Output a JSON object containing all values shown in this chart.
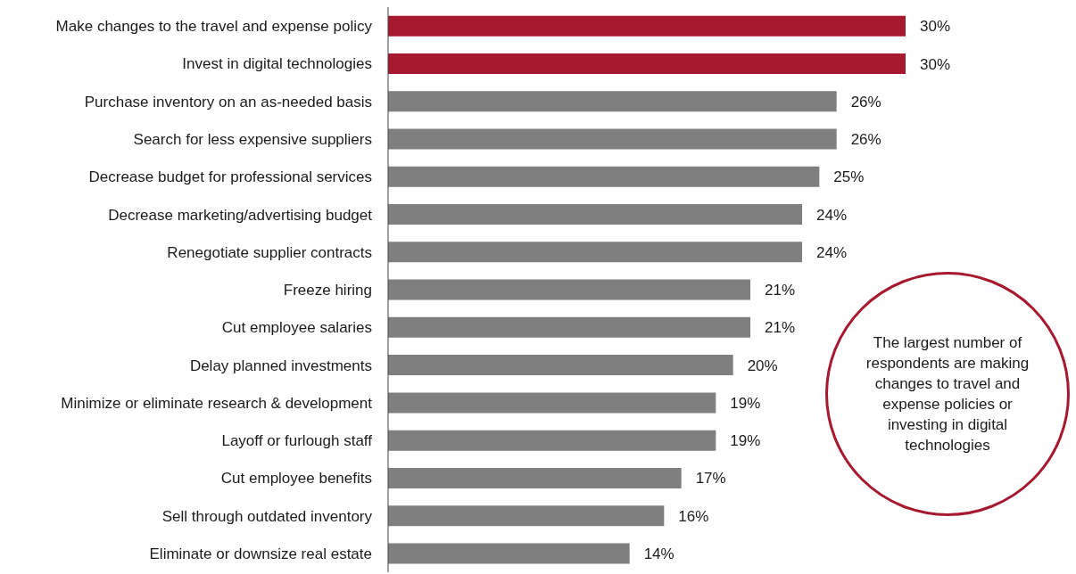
{
  "chart_data": {
    "type": "bar",
    "orientation": "horizontal",
    "categories": [
      "Make changes to the travel and expense policy",
      "Invest in digital technologies",
      "Purchase inventory on an as-needed basis",
      "Search for less expensive suppliers",
      "Decrease budget for professional services",
      "Decrease marketing/advertising budget",
      "Renegotiate supplier contracts",
      "Freeze hiring",
      "Cut employee salaries",
      "Delay planned investments",
      "Minimize or eliminate research & development",
      "Layoff or furlough staff",
      "Cut employee benefits",
      "Sell through outdated inventory",
      "Eliminate or downsize real estate"
    ],
    "values": [
      30,
      30,
      26,
      26,
      25,
      24,
      24,
      21,
      21,
      20,
      19,
      19,
      17,
      16,
      14
    ],
    "colors": [
      "#a6192e",
      "#a6192e",
      "#7f7f7f",
      "#7f7f7f",
      "#7f7f7f",
      "#7f7f7f",
      "#7f7f7f",
      "#7f7f7f",
      "#7f7f7f",
      "#7f7f7f",
      "#7f7f7f",
      "#7f7f7f",
      "#7f7f7f",
      "#7f7f7f",
      "#7f7f7f"
    ],
    "value_labels": [
      "30%",
      "30%",
      "26%",
      "26%",
      "25%",
      "24%",
      "24%",
      "21%",
      "21%",
      "20%",
      "19%",
      "19%",
      "17%",
      "16%",
      "14%"
    ],
    "annotations": [
      "The largest number of respondents are making changes to travel and expense policies or investing in digital technologies"
    ],
    "tick_labels": "y"
  }
}
